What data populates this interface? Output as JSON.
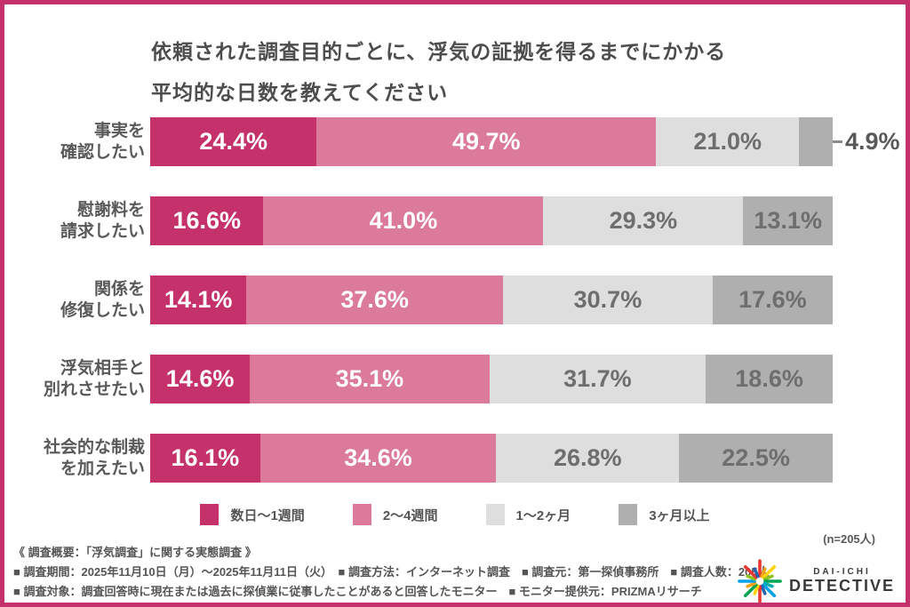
{
  "title": {
    "line1": "依頼された調査目的ごとに、浮気の証拠を得るまでにかかる",
    "line2": "平均的な日数を教えてください"
  },
  "chart_data": {
    "type": "bar",
    "orientation": "horizontal",
    "stacked": true,
    "xlim": [
      0,
      100
    ],
    "value_suffix": "%",
    "categories": [
      [
        "事実を",
        "確認したい"
      ],
      [
        "慰謝料を",
        "請求したい"
      ],
      [
        "関係を",
        "修復したい"
      ],
      [
        "浮気相手と",
        "別れさせたい"
      ],
      [
        "社会的な制裁",
        "を加えたい"
      ]
    ],
    "series": [
      {
        "name": "数日～1週間",
        "color": "#C5326B",
        "text_color": "#ffffff",
        "values": [
          24.4,
          16.6,
          14.1,
          14.6,
          16.1
        ]
      },
      {
        "name": "2～4週間",
        "color": "#DB7A9B",
        "text_color": "#ffffff",
        "values": [
          49.7,
          41.0,
          37.6,
          35.1,
          34.6
        ]
      },
      {
        "name": "1～2ヶ月",
        "color": "#DEDEDE",
        "text_color": "#6E6E6E",
        "values": [
          21.0,
          29.3,
          30.7,
          31.7,
          26.8
        ]
      },
      {
        "name": "3ヶ月以上",
        "color": "#AFAFAF",
        "text_color": "#6E6E6E",
        "values": [
          4.9,
          13.1,
          17.6,
          18.6,
          22.5
        ]
      }
    ],
    "outside_label_threshold": 6
  },
  "sample_note": "(n=205人)",
  "footer": {
    "line1": "《 調査概要：「浮気調査」に関する実態調査 》",
    "line2": "■ 調査期間：2025年11月10日（月）～2025年11月11日（火）　■ 調査方法：インターネット調査　■ 調査元：第一探偵事務所　■ 調査人数：205人",
    "line3": "■ 調査対象：調査回答時に現在または過去に探偵業に従事したことがあると回答したモニター　■ モニター提供元：PRIZMAリサーチ"
  },
  "logo": {
    "line1": "DAI-ICHI",
    "line2": "DETECTIVE",
    "ray_colors": [
      "#E8382F",
      "#F5A216",
      "#FFD400",
      "#8DC21F",
      "#00A551",
      "#00ADA9",
      "#00A0E9",
      "#2762AD",
      "#E8382F",
      "#FFD400",
      "#00A551",
      "#F5A216",
      "#00A0E9",
      "#8DC21F",
      "#E8382F",
      "#2762AD"
    ]
  },
  "frame_color": "#C5326B"
}
